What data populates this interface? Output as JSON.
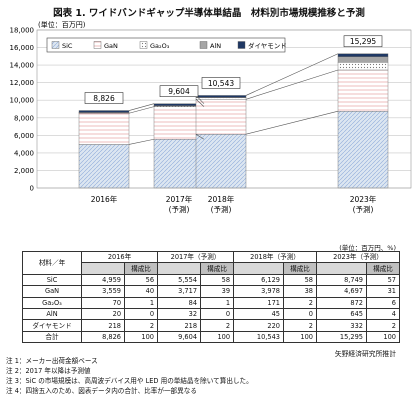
{
  "title": "図表 1. ワイドバンドギャップ半導体単結晶　材料別市場規模推移と予測",
  "chart_data": {
    "type": "bar",
    "stacked": true,
    "unit_label": "(単位：百万円)",
    "categories": [
      "2016年",
      "2017年\n(予測)",
      "2018年\n(予測)",
      "2023年\n(予測)"
    ],
    "totals": [
      8826,
      9604,
      10543,
      15295
    ],
    "series": [
      {
        "name": "SiC",
        "values": [
          4959,
          5554,
          6129,
          8749
        ],
        "color": "#dce6f1"
      },
      {
        "name": "GaN",
        "values": [
          3559,
          3717,
          3978,
          4697
        ],
        "color": "#ffffff"
      },
      {
        "name": "Ga₂O₃",
        "values": [
          70,
          84,
          171,
          872
        ],
        "color": "#ededed"
      },
      {
        "name": "AlN",
        "values": [
          20,
          32,
          45,
          645
        ],
        "color": "#a6a6a6"
      },
      {
        "name": "ダイヤモンド",
        "values": [
          218,
          218,
          220,
          332
        ],
        "color": "#1f3864"
      }
    ],
    "ylim": [
      0,
      18000
    ],
    "yticks": [
      "0",
      "2,000",
      "4,000",
      "6,000",
      "8,000",
      "10,000",
      "12,000",
      "14,000",
      "16,000",
      "18,000"
    ],
    "total_labels": [
      "8,826",
      "9,604",
      "10,543",
      "15,295"
    ],
    "grid": true,
    "legend": "top-left"
  },
  "table": {
    "unit": "(単位：百万円、%)",
    "head_label": "材料／年",
    "years": [
      "2016年",
      "2017年（予測）",
      "2018年（予測）",
      "2023年（予測）"
    ],
    "share_label": "構成比",
    "rows": [
      {
        "label": "SiC",
        "cells": [
          "4,959",
          "56",
          "5,554",
          "58",
          "6,129",
          "58",
          "8,749",
          "57"
        ]
      },
      {
        "label": "GaN",
        "cells": [
          "3,559",
          "40",
          "3,717",
          "39",
          "3,978",
          "38",
          "4,697",
          "31"
        ]
      },
      {
        "label": "Ga₂O₃",
        "cells": [
          "70",
          "1",
          "84",
          "1",
          "171",
          "2",
          "872",
          "6"
        ]
      },
      {
        "label": "AlN",
        "cells": [
          "20",
          "0",
          "32",
          "0",
          "45",
          "0",
          "645",
          "4"
        ]
      },
      {
        "label": "ダイヤモンド",
        "cells": [
          "218",
          "2",
          "218",
          "2",
          "220",
          "2",
          "332",
          "2"
        ]
      },
      {
        "label": "合計",
        "cells": [
          "8,826",
          "100",
          "9,604",
          "100",
          "10,543",
          "100",
          "15,295",
          "100"
        ]
      }
    ]
  },
  "source": "矢野経済研究所推計",
  "notes": [
    "注 1：メーカー出荷金額ベース",
    "注 2：2017 年以降は予測値",
    "注 3：SiC の市場規模は、高周波デバイス用や LED 用の単結晶を除いて算出した。",
    "注 4：四捨五入のため、図表データ内の合計、比率が一部異なる"
  ]
}
